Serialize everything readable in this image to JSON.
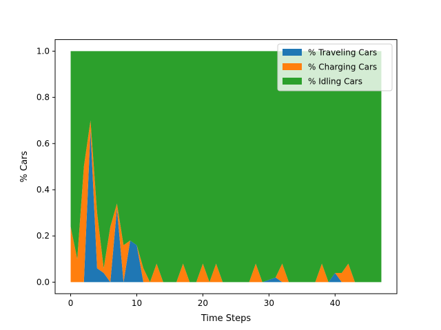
{
  "chart_data": {
    "type": "area",
    "stacked": true,
    "x": [
      0,
      1,
      2,
      3,
      4,
      5,
      6,
      7,
      8,
      9,
      10,
      11,
      12,
      13,
      14,
      15,
      16,
      17,
      18,
      19,
      20,
      21,
      22,
      23,
      24,
      25,
      26,
      27,
      28,
      29,
      30,
      31,
      32,
      33,
      34,
      35,
      36,
      37,
      38,
      39,
      40,
      41,
      42,
      43,
      44,
      45,
      46,
      47
    ],
    "series": [
      {
        "name": "% Traveling Cars",
        "color": "#1f77b4",
        "values": [
          0,
          0,
          0,
          0.66,
          0.06,
          0.04,
          0,
          0.32,
          0,
          0.18,
          0.16,
          0,
          0,
          0,
          0,
          0,
          0,
          0,
          0,
          0,
          0,
          0,
          0,
          0,
          0,
          0,
          0,
          0,
          0,
          0,
          0.01,
          0.02,
          0,
          0,
          0,
          0,
          0,
          0,
          0,
          0,
          0.04,
          0,
          0,
          0,
          0,
          0,
          0,
          0
        ]
      },
      {
        "name": "% Charging Cars",
        "color": "#ff7f0e",
        "values": [
          0.24,
          0.1,
          0.5,
          0.04,
          0.24,
          0.02,
          0.24,
          0.02,
          0.16,
          0,
          0,
          0.06,
          0,
          0.08,
          0,
          0,
          0,
          0.08,
          0,
          0,
          0.08,
          0,
          0.08,
          0,
          0,
          0,
          0,
          0,
          0.08,
          0,
          0,
          0,
          0.08,
          0,
          0,
          0,
          0,
          0,
          0.08,
          0,
          0,
          0.04,
          0.08,
          0,
          0,
          0,
          0,
          0
        ]
      },
      {
        "name": "% Idling Cars",
        "color": "#2ca02c",
        "values": [
          0.76,
          0.9,
          0.5,
          0.3,
          0.7,
          0.94,
          0.76,
          0.66,
          0.84,
          0.82,
          0.84,
          0.94,
          1,
          0.92,
          1,
          1,
          1,
          0.92,
          1,
          1,
          0.92,
          1,
          0.92,
          1,
          1,
          1,
          1,
          1,
          0.92,
          1,
          0.99,
          0.98,
          0.92,
          1,
          1,
          1,
          1,
          1,
          0.92,
          1,
          0.96,
          0.96,
          0.92,
          1,
          1,
          1,
          1,
          1
        ]
      }
    ],
    "xlabel": "Time Steps",
    "ylabel": "% Cars",
    "xlim": [
      -2.35,
      49.35
    ],
    "ylim": [
      -0.05,
      1.05
    ],
    "xticks": [
      0,
      10,
      20,
      30,
      40
    ],
    "yticks": [
      0.0,
      0.2,
      0.4,
      0.6,
      0.8,
      1.0
    ],
    "xtick_labels": [
      "0",
      "10",
      "20",
      "30",
      "40"
    ],
    "ytick_labels": [
      "0.0",
      "0.2",
      "0.4",
      "0.6",
      "0.8",
      "1.0"
    ],
    "grid": false,
    "legend_position": "top-right"
  }
}
